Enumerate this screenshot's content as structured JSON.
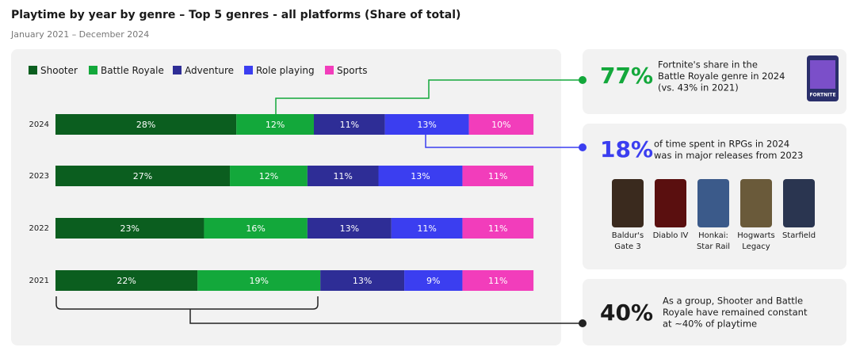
{
  "chart_data": {
    "type": "bar",
    "orientation": "horizontal",
    "stacked": true,
    "title": "Playtime by year by genre – Top 5 genres - all platforms (Share of total)",
    "subtitle": "January 2021 – December 2024",
    "categories": [
      "2024",
      "2023",
      "2022",
      "2021"
    ],
    "series": [
      {
        "name": "Shooter",
        "color": "#0b5e1f",
        "values": [
          28,
          27,
          23,
          22
        ],
        "value_labels": [
          "28%",
          "27%",
          "23%",
          "22%"
        ]
      },
      {
        "name": "Battle Royale",
        "color": "#13a83b",
        "values": [
          12,
          12,
          16,
          19
        ],
        "value_labels": [
          "12%",
          "12%",
          "16%",
          "19%"
        ]
      },
      {
        "name": "Adventure",
        "color": "#2e2d96",
        "values": [
          11,
          11,
          13,
          13
        ],
        "value_labels": [
          "11%",
          "11%",
          "13%",
          "13%"
        ]
      },
      {
        "name": "Role playing",
        "color": "#3b3ef0",
        "values": [
          13,
          13,
          11,
          9
        ],
        "value_labels": [
          "13%",
          "13%",
          "11%",
          "9%"
        ]
      },
      {
        "name": "Sports",
        "color": "#f23dbb",
        "values": [
          10,
          11,
          11,
          11
        ],
        "value_labels": [
          "10%",
          "11%",
          "11%",
          "11%"
        ]
      }
    ]
  },
  "callouts": [
    {
      "value": "77%",
      "lines": [
        "Fortnite's share in the",
        "Battle Royale genre in 2024",
        "(vs. 43% in 2021)"
      ]
    },
    {
      "value": "18%",
      "lines": [
        "of time spent in RPGs in 2024",
        "was in major releases from 2023"
      ]
    },
    {
      "value": "40%",
      "lines": [
        "As a group, Shooter and Battle",
        "Royale have remained constant",
        "at ~40% of playtime"
      ]
    }
  ],
  "fortnite_logo": "FORTNITE",
  "games": [
    {
      "lines": [
        "Baldur's",
        "Gate 3"
      ]
    },
    {
      "lines": [
        "Diablo IV"
      ]
    },
    {
      "lines": [
        "Honkai:",
        "Star Rail"
      ]
    },
    {
      "lines": [
        "Hogwarts",
        "Legacy"
      ]
    },
    {
      "lines": [
        "Starfield"
      ]
    }
  ]
}
